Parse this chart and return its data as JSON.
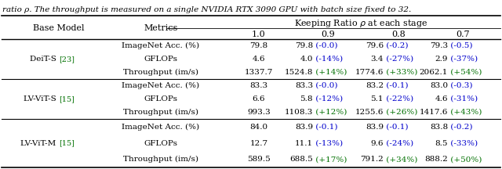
{
  "caption": "ratio ρ. The throughput is measured on a single NVIDIA RTX 3090 GPU with batch size fixed to 32.",
  "rows": [
    {
      "model_black": "DeiT-S ",
      "model_green": "[23]",
      "metrics": [
        "ImageNet Acc. (%)",
        "GFLOPs",
        "Throughput (im/s)"
      ],
      "col0": [
        "79.8",
        "4.6",
        "1337.7"
      ],
      "col1": [
        [
          "79.8",
          " (-0.0)",
          "blue"
        ],
        [
          "4.0",
          " (-14%)",
          "blue"
        ],
        [
          "1524.8",
          " (+14%)",
          "green"
        ]
      ],
      "col2": [
        [
          "79.6",
          " (-0.2)",
          "blue"
        ],
        [
          "3.4",
          " (-27%)",
          "blue"
        ],
        [
          "1774.6",
          " (+33%)",
          "green"
        ]
      ],
      "col3": [
        [
          "79.3",
          " (-0.5)",
          "blue"
        ],
        [
          "2.9",
          " (-37%)",
          "blue"
        ],
        [
          "2062.1",
          " (+54%)",
          "green"
        ]
      ]
    },
    {
      "model_black": "LV-ViT-S ",
      "model_green": "[15]",
      "metrics": [
        "ImageNet Acc. (%)",
        "GFLOPs",
        "Throughput (im/s)"
      ],
      "col0": [
        "83.3",
        "6.6",
        "993.3"
      ],
      "col1": [
        [
          "83.3",
          " (-0.0)",
          "blue"
        ],
        [
          "5.8",
          " (-12%)",
          "blue"
        ],
        [
          "1108.3",
          " (+12%)",
          "green"
        ]
      ],
      "col2": [
        [
          "83.2",
          " (-0.1)",
          "blue"
        ],
        [
          "5.1",
          " (-22%)",
          "blue"
        ],
        [
          "1255.6",
          " (+26%)",
          "green"
        ]
      ],
      "col3": [
        [
          "83.0",
          " (-0.3)",
          "blue"
        ],
        [
          "4.6",
          " (-31%)",
          "blue"
        ],
        [
          "1417.6",
          " (+43%)",
          "green"
        ]
      ]
    },
    {
      "model_black": "LV-ViT-M ",
      "model_green": "[15]",
      "metrics": [
        "ImageNet Acc. (%)",
        "GFLOPs",
        "Throughput (im/s)"
      ],
      "col0": [
        "84.0",
        "12.7",
        "589.5"
      ],
      "col1": [
        [
          "83.9",
          " (-0.1)",
          "blue"
        ],
        [
          "11.1",
          " (-13%)",
          "blue"
        ],
        [
          "688.5",
          " (+17%)",
          "green"
        ]
      ],
      "col2": [
        [
          "83.9",
          " (-0.1)",
          "blue"
        ],
        [
          "9.6",
          " (-24%)",
          "blue"
        ],
        [
          "791.2",
          " (+34%)",
          "green"
        ]
      ],
      "col3": [
        [
          "83.8",
          " (-0.2)",
          "blue"
        ],
        [
          "8.5",
          " (-33%)",
          "blue"
        ],
        [
          "888.2",
          " (+50%)",
          "green"
        ]
      ]
    }
  ],
  "black": "#000000",
  "blue": "#0000cc",
  "green": "#007000",
  "fig_width": 6.4,
  "fig_height": 2.16,
  "dpi": 100
}
